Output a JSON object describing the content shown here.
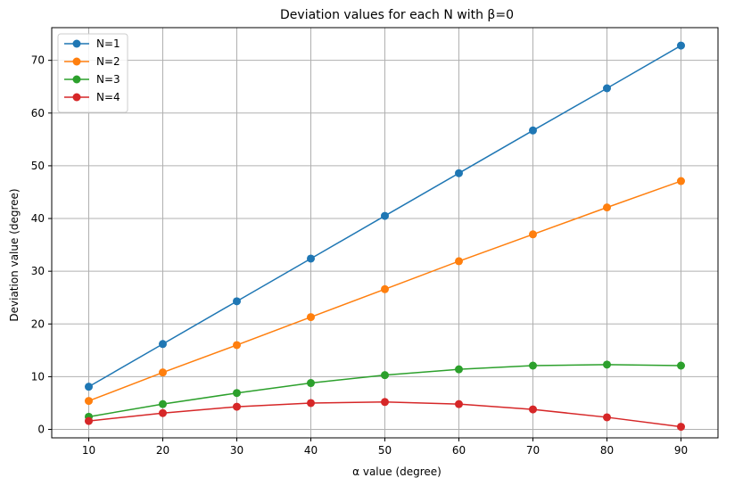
{
  "chart_data": {
    "type": "line",
    "title": "Deviation values for each N with β=0",
    "xlabel": "α value (degree)",
    "ylabel": "Deviation value (degree)",
    "x": [
      10,
      20,
      30,
      40,
      50,
      60,
      70,
      80,
      90
    ],
    "xlim": [
      5,
      95
    ],
    "ylim": [
      -1.6,
      76.2
    ],
    "xticks": [
      10,
      20,
      30,
      40,
      50,
      60,
      70,
      80,
      90
    ],
    "yticks": [
      0,
      10,
      20,
      30,
      40,
      50,
      60,
      70
    ],
    "grid": true,
    "legend_position": "top-left",
    "series": [
      {
        "name": "N=1",
        "color": "#1f77b4",
        "values": [
          8.1,
          16.2,
          24.3,
          32.4,
          40.5,
          48.6,
          56.7,
          64.7,
          72.8
        ]
      },
      {
        "name": "N=2",
        "color": "#ff7f0e",
        "values": [
          5.4,
          10.8,
          16.0,
          21.3,
          26.6,
          31.9,
          37.0,
          42.1,
          47.1
        ]
      },
      {
        "name": "N=3",
        "color": "#2ca02c",
        "values": [
          2.4,
          4.8,
          6.9,
          8.8,
          10.3,
          11.4,
          12.1,
          12.3,
          12.1
        ]
      },
      {
        "name": "N=4",
        "color": "#d62728",
        "values": [
          1.6,
          3.1,
          4.3,
          5.0,
          5.2,
          4.8,
          3.8,
          2.3,
          0.5
        ]
      }
    ]
  }
}
